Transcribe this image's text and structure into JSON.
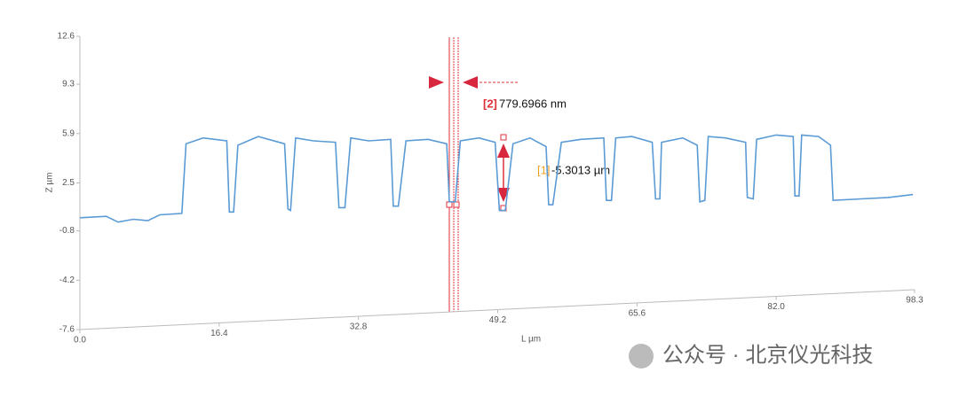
{
  "chart_data": {
    "type": "line",
    "ylabel": "Z µm",
    "xlabel": "L µm",
    "ylim": [
      -7.6,
      12.6
    ],
    "yticks": [
      12.6,
      9.3,
      5.9,
      2.5,
      -0.8,
      -4.2,
      -7.6
    ],
    "xlim": [
      0,
      98.3
    ],
    "xticks": [
      {
        "value": 0,
        "label": "0.0"
      },
      16.4,
      32.8,
      49.2,
      65.6,
      {
        "value": 82,
        "label": "82.0"
      },
      98.3
    ],
    "color": "#5b9bd5",
    "x": [
      0,
      3.1,
      4.5,
      6.3,
      8,
      9.4,
      12.0,
      12.5,
      14.5,
      17.3,
      17.6,
      18.1,
      18.6,
      21,
      24.1,
      24.5,
      24.8,
      25.4,
      27.5,
      30.1,
      30.5,
      31.2,
      31.9,
      34,
      36.6,
      36.9,
      37.5,
      38.4,
      41,
      43.2,
      43.5,
      44.2,
      44.8,
      47,
      48.9,
      49.4,
      50.1,
      51.0,
      53,
      54.9,
      55.2,
      55.7,
      56.7,
      59,
      61.7,
      62.0,
      62.6,
      63.1,
      65,
      67.4,
      67.8,
      68.3,
      68.5,
      71,
      72.7,
      73.0,
      73.6,
      74.0,
      76,
      78.4,
      78.6,
      79.3,
      79.7,
      82,
      84.0,
      84.2,
      84.7,
      85.0,
      87,
      88.4,
      88.7,
      92,
      95.2,
      98.1
    ],
    "values": [
      0.1,
      0.2,
      -0.2,
      0.0,
      -0.1,
      0.3,
      0.4,
      5.2,
      5.6,
      5.4,
      0.5,
      0.5,
      5.1,
      5.7,
      5.2,
      0.7,
      0.6,
      5.6,
      5.4,
      5.3,
      0.8,
      0.8,
      5.6,
      5.4,
      5.5,
      0.9,
      0.9,
      5.4,
      5.5,
      5.2,
      1.2,
      1.2,
      5.4,
      5.6,
      5.3,
      0.6,
      0.6,
      5.2,
      5.6,
      5.0,
      1.0,
      1.0,
      5.3,
      5.5,
      5.6,
      1.3,
      1.3,
      5.6,
      5.7,
      5.3,
      1.4,
      1.4,
      5.3,
      5.6,
      5.1,
      1.2,
      1.3,
      5.7,
      5.6,
      5.3,
      1.5,
      1.4,
      5.5,
      5.8,
      5.7,
      1.6,
      1.6,
      5.8,
      5.7,
      5.1,
      1.3,
      1.4,
      1.5,
      1.7
    ],
    "annotations": [
      {
        "id": "[2]",
        "text": "779.6966 nm"
      },
      {
        "id": "[1]",
        "text": "-5.3013 µm"
      }
    ],
    "watermark": "公众号 · 北京仪光科技"
  }
}
